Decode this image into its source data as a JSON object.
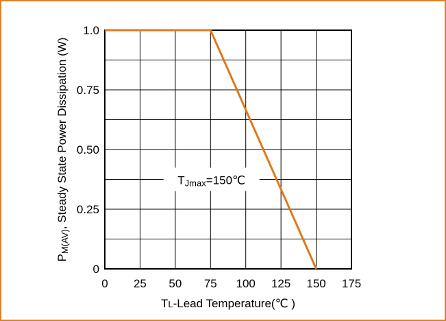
{
  "colors": {
    "border": "#e0811d",
    "line": "#e0781a",
    "grid": "#000000",
    "annotation_bg": "#ffffff"
  },
  "chart_data": {
    "type": "line",
    "title": "",
    "xlabel": {
      "main": "T",
      "sub": "L",
      "rest": "-Lead Temperature(℃ )"
    },
    "ylabel": {
      "main": "P",
      "sub": "M(AV)",
      "rest": ", Steady State Power Dissipation (W)"
    },
    "xlim": [
      0,
      175
    ],
    "ylim": [
      0,
      1.0
    ],
    "x_ticks": [
      0,
      25,
      50,
      75,
      100,
      125,
      150,
      175
    ],
    "x_tick_labels": [
      "0",
      "25",
      "50",
      "75",
      "100",
      "125",
      "150",
      "175"
    ],
    "y_ticks": [
      0,
      0.25,
      0.5,
      0.75,
      1.0
    ],
    "y_tick_labels": [
      "0",
      "0.25",
      "0.50",
      "0.75",
      "1.0"
    ],
    "grid": true,
    "grid_x_step": 25,
    "grid_y_step": 0.125,
    "series": [
      {
        "points": [
          [
            0,
            1.0
          ],
          [
            75,
            1.0
          ],
          [
            150,
            0
          ]
        ]
      }
    ],
    "annotation": {
      "main": "T",
      "sub": "Jmax",
      "rest": "=150℃",
      "x": 100,
      "y": 0.375
    }
  }
}
